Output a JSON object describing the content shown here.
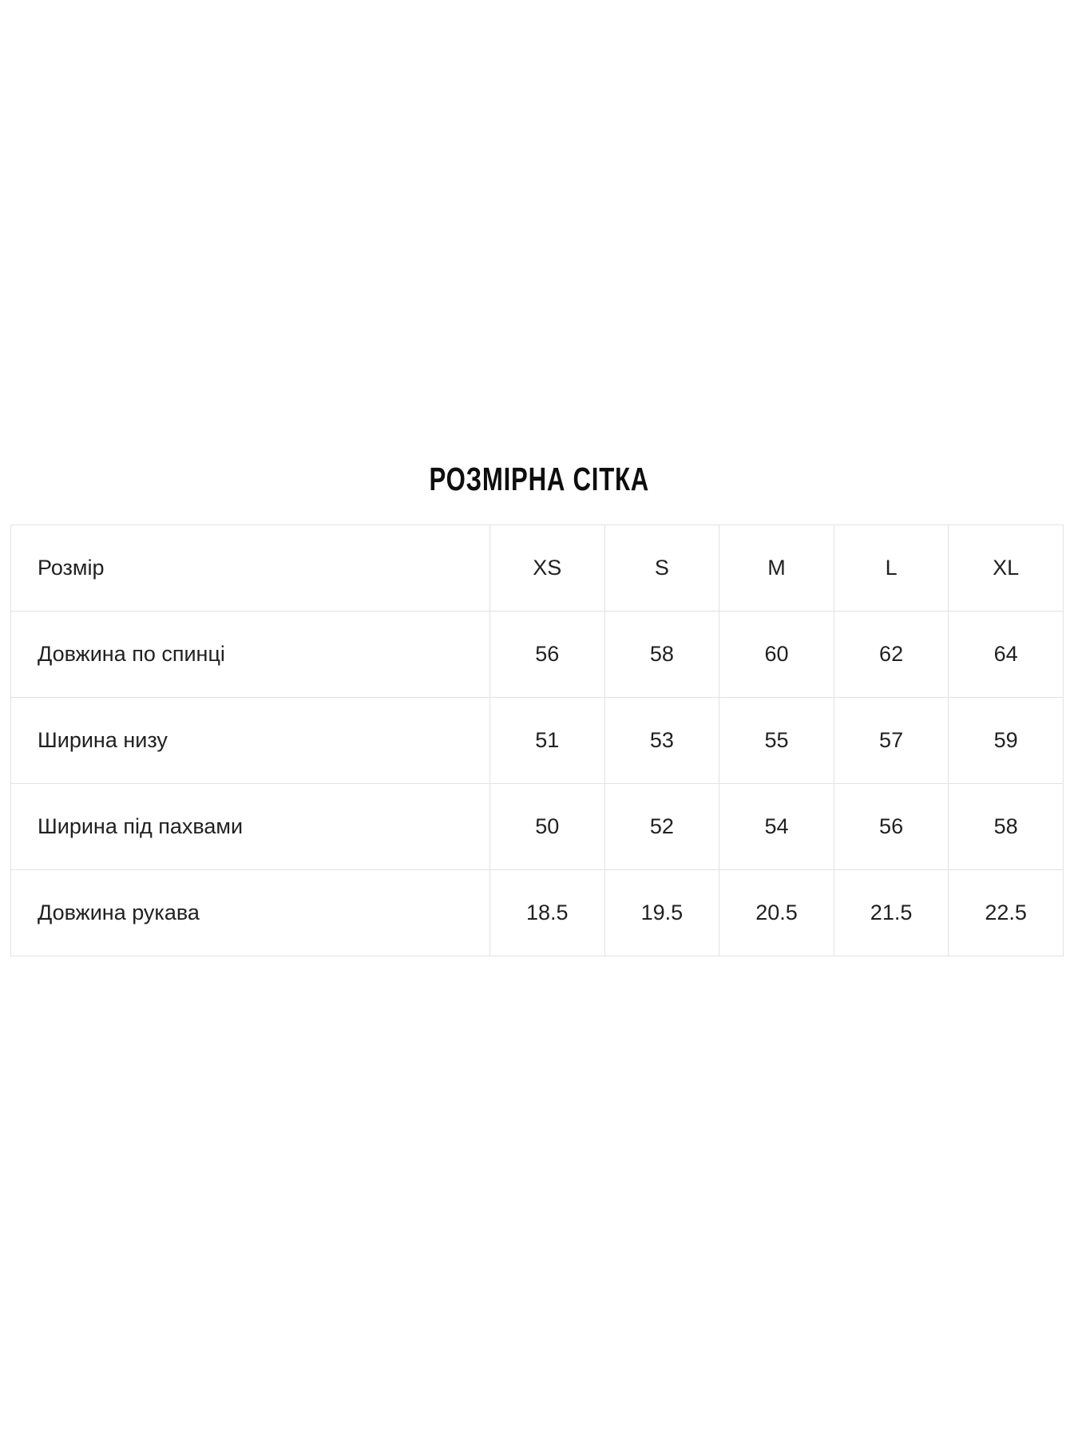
{
  "page": {
    "title": "РОЗМІРНА СІТКА"
  },
  "size_table": {
    "header": {
      "label": "Розмір",
      "sizes": [
        "XS",
        "S",
        "M",
        "L",
        "XL"
      ]
    },
    "rows": [
      {
        "label": "Довжина по спинці",
        "values": [
          "56",
          "58",
          "60",
          "62",
          "64"
        ]
      },
      {
        "label": "Ширина низу",
        "values": [
          "51",
          "53",
          "55",
          "57",
          "59"
        ]
      },
      {
        "label": "Ширина під пахвами",
        "values": [
          "50",
          "52",
          "54",
          "56",
          "58"
        ]
      },
      {
        "label": "Довжина рукава",
        "values": [
          "18.5",
          "19.5",
          "20.5",
          "21.5",
          "22.5"
        ]
      }
    ],
    "colors": {
      "border": "#e2e2e2",
      "text": "#212121",
      "title": "#0e0e0e",
      "background": "#ffffff"
    }
  }
}
